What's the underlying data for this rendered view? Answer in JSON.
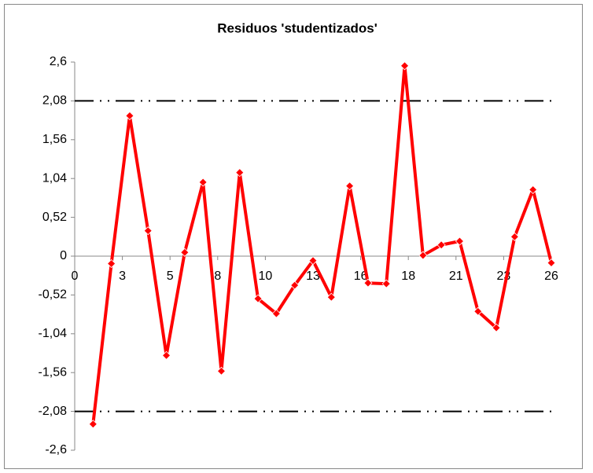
{
  "chart_data": {
    "type": "scatter",
    "title": "Residuos 'studentizados'",
    "x": [
      1,
      2,
      3,
      4,
      5,
      6,
      7,
      8,
      9,
      10,
      11,
      12,
      13,
      14,
      15,
      16,
      17,
      18,
      19,
      20,
      21,
      22,
      23,
      24,
      25,
      26
    ],
    "series": [
      {
        "name": "Residuos",
        "color": "#ff0000",
        "values": [
          -2.25,
          -0.1,
          1.88,
          0.34,
          -1.33,
          0.05,
          0.99,
          -1.54,
          1.12,
          -0.57,
          -0.77,
          -0.39,
          -0.06,
          -0.55,
          0.94,
          -0.36,
          -0.37,
          2.55,
          0.01,
          0.15,
          0.2,
          -0.74,
          -0.96,
          0.26,
          0.89,
          -0.09
        ]
      }
    ],
    "hlines": [
      2.08,
      -2.08
    ],
    "hline_color": "#000000",
    "xlim": [
      0,
      26
    ],
    "xticks": [
      0,
      {
        "value": 2.6,
        "label": "3"
      },
      {
        "value": 5.2,
        "label": "5"
      },
      {
        "value": 7.8,
        "label": "8"
      },
      {
        "value": 10.4,
        "label": "10"
      },
      13,
      {
        "value": 15.6,
        "label": "16"
      },
      {
        "value": 18.2,
        "label": "18"
      },
      {
        "value": 20.8,
        "label": "21"
      },
      {
        "value": 23.4,
        "label": "23"
      },
      26
    ],
    "ylim": [
      -2.6,
      2.6
    ],
    "yticks": [
      {
        "value": 2.6,
        "label": "2,6"
      },
      {
        "value": 2.08,
        "label": "2,08"
      },
      {
        "value": 1.56,
        "label": "1,56"
      },
      {
        "value": 1.04,
        "label": "1,04"
      },
      {
        "value": 0.52,
        "label": "0,52"
      },
      0,
      {
        "value": -0.52,
        "label": "-0,52"
      },
      {
        "value": -1.04,
        "label": "-1,04"
      },
      {
        "value": -1.56,
        "label": "-1,56"
      },
      {
        "value": -2.08,
        "label": "-2,08"
      },
      {
        "value": -2.6,
        "label": "-2,6"
      }
    ],
    "grid": false
  }
}
